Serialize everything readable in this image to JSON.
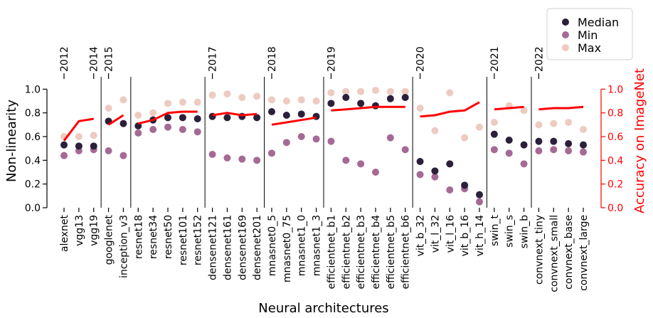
{
  "chart_data": {
    "type": "scatter",
    "xlabel": "Neural architectures",
    "ylabel": "Non-linearity",
    "ylabel_right": "Accuracy on ImageNet",
    "ylim": [
      0,
      1.08
    ],
    "ylim_right": [
      0,
      1.08
    ],
    "yticks": [
      "0.0",
      "0.2",
      "0.4",
      "0.6",
      "0.8",
      "1.0"
    ],
    "yticks_right": [
      "0.0",
      "0.2",
      "0.4",
      "0.6",
      "0.8",
      "1.0"
    ],
    "colors": {
      "median": "#2b1f3a",
      "min": "#a56a94",
      "max": "#edcbc1",
      "accuracy": "#ff0000"
    },
    "legend": {
      "position": "top-right",
      "entries": [
        "Median",
        "Min",
        "Max"
      ]
    },
    "categories": [
      "alexnet",
      "vgg13",
      "vgg19",
      "googlenet",
      "inception_v3",
      "resnet18",
      "resnet34",
      "resnet50",
      "resnet101",
      "resnet152",
      "densenet121",
      "densenet161",
      "densenet169",
      "densenet201",
      "mnasnet0_5",
      "mnasnet0_75",
      "mnasnet1_0",
      "mnasnet1_3",
      "efficientnet_b1",
      "efficientnet_b2",
      "efficientnet_b3",
      "efficientnet_b4",
      "efficientnet_b5",
      "efficientnet_b6",
      "vit_b_32",
      "vit_l_32",
      "vit_l_16",
      "vit_b_16",
      "vit_h_14",
      "swin_t",
      "swin_s",
      "swin_b",
      "convnext_tiny",
      "convnext_small",
      "convnext_base",
      "convnext_large"
    ],
    "groups": [
      {
        "years": [
          "2012",
          "2014"
        ],
        "start": 0,
        "end": 2
      },
      {
        "years": [
          "2015"
        ],
        "start": 3,
        "end": 4
      },
      {
        "years": [],
        "start": 5,
        "end": 9
      },
      {
        "years": [
          "2017"
        ],
        "start": 10,
        "end": 13
      },
      {
        "years": [
          "2018"
        ],
        "start": 14,
        "end": 17
      },
      {
        "years": [
          "2019"
        ],
        "start": 18,
        "end": 23
      },
      {
        "years": [
          "2020"
        ],
        "start": 24,
        "end": 28
      },
      {
        "years": [
          "2021"
        ],
        "start": 29,
        "end": 31
      },
      {
        "years": [
          "2022"
        ],
        "start": 32,
        "end": 35
      }
    ],
    "series": [
      {
        "name": "Median",
        "values": [
          0.53,
          0.52,
          0.52,
          0.73,
          0.71,
          0.69,
          0.74,
          0.76,
          0.76,
          0.75,
          0.77,
          0.76,
          0.77,
          0.76,
          0.81,
          0.78,
          0.79,
          0.77,
          0.88,
          0.93,
          0.88,
          0.86,
          0.92,
          0.93,
          0.39,
          0.31,
          0.37,
          0.19,
          0.11,
          0.62,
          0.57,
          0.53,
          0.56,
          0.56,
          0.54,
          0.53
        ]
      },
      {
        "name": "Min",
        "values": [
          0.44,
          0.48,
          0.49,
          0.48,
          0.44,
          0.63,
          0.66,
          0.68,
          0.66,
          0.64,
          0.45,
          0.42,
          0.41,
          0.4,
          0.46,
          0.55,
          0.6,
          0.58,
          0.56,
          0.4,
          0.37,
          0.3,
          0.59,
          0.49,
          0.28,
          0.26,
          0.15,
          0.16,
          0.05,
          0.49,
          0.46,
          0.37,
          0.48,
          0.49,
          0.48,
          0.47
        ]
      },
      {
        "name": "Max",
        "values": [
          0.6,
          0.6,
          0.61,
          0.84,
          0.91,
          0.78,
          0.8,
          0.88,
          0.89,
          0.89,
          0.95,
          0.96,
          0.93,
          0.94,
          0.91,
          0.9,
          0.91,
          0.9,
          0.97,
          0.98,
          0.98,
          0.99,
          0.98,
          0.98,
          0.84,
          0.65,
          0.97,
          0.59,
          0.68,
          0.72,
          0.86,
          0.82,
          0.7,
          0.71,
          0.72,
          0.66
        ]
      }
    ],
    "accuracy": [
      0.565,
      0.73,
      0.75,
      0.7,
      0.78,
      0.71,
      0.74,
      0.8,
      0.81,
      0.81,
      0.78,
      0.8,
      0.78,
      0.79,
      0.7,
      0.72,
      0.74,
      0.76,
      0.82,
      0.83,
      0.84,
      0.85,
      0.85,
      0.85,
      0.77,
      0.78,
      0.81,
      0.82,
      0.89,
      0.83,
      0.84,
      0.85,
      0.83,
      0.84,
      0.84,
      0.85
    ]
  }
}
